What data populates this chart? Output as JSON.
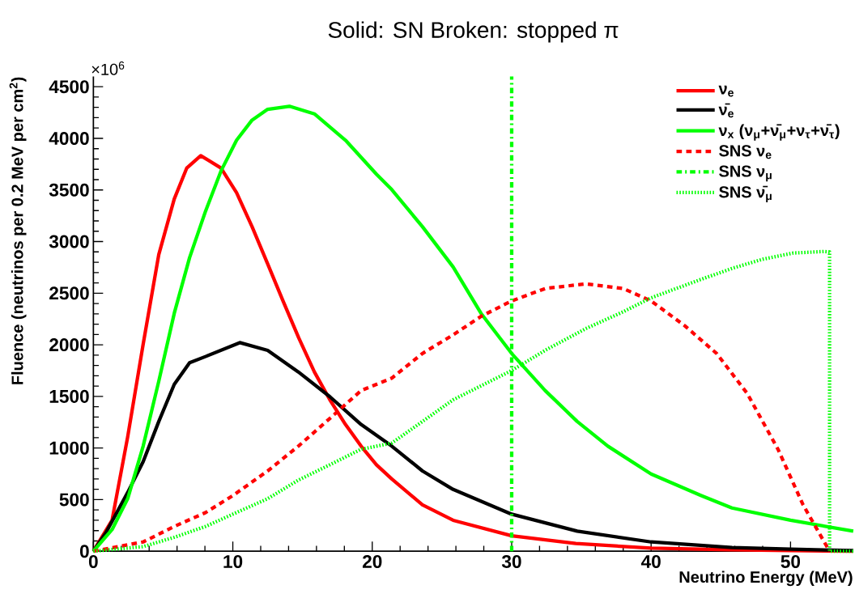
{
  "chart_data": {
    "type": "line",
    "title": "Solid: SN    Broken: stopped π",
    "xlabel": "Neutrino Energy (MeV)",
    "ylabel": "Fluence (neutrinos per 0.2 MeV per cm$^{2}$)",
    "annotations": [
      "×10$^{6}$"
    ],
    "xlim": [
      0,
      54.5
    ],
    "ylim": [
      0,
      4600
    ],
    "xticks": [
      0,
      10,
      20,
      30,
      40,
      50
    ],
    "yticks": [
      0,
      500,
      1000,
      1500,
      2000,
      2500,
      3000,
      3500,
      4000,
      4500
    ],
    "grid": false,
    "legend": "top right",
    "marker": "none",
    "series": [
      {
        "name": "ν$_{e}$",
        "color": "#ff0000",
        "line_style": "solid",
        "x": [
          0,
          1.34,
          2.46,
          3.57,
          4.69,
          5.8,
          6.7,
          7.7,
          9.15,
          10.27,
          11.38,
          12.5,
          13.6,
          14.73,
          15.85,
          16.96,
          18.08,
          19.2,
          20.3,
          21.4,
          23.6,
          25.8,
          30,
          34.6,
          40,
          45.7,
          50,
          54.5
        ],
        "values": [
          0,
          300,
          1108,
          2006,
          2874,
          3413,
          3713,
          3832,
          3713,
          3473,
          3144,
          2784,
          2425,
          2066,
          1737,
          1467,
          1228,
          1018,
          838,
          700,
          449,
          300,
          150,
          75,
          30,
          15,
          6,
          0
        ]
      },
      {
        "name": "ν̄$_{e}$",
        "color": "#000000",
        "line_style": "solid",
        "x": [
          0,
          0.9,
          2.46,
          3.57,
          4.69,
          5.8,
          6.9,
          8.04,
          10.5,
          12.5,
          14.7,
          16.96,
          19.2,
          21.4,
          23.6,
          25.8,
          30,
          34.7,
          40,
          45.8,
          50,
          54.5
        ],
        "values": [
          0,
          180,
          569,
          868,
          1257,
          1617,
          1826,
          1886,
          2021,
          1946,
          1737,
          1497,
          1228,
          1018,
          778,
          599,
          359,
          195,
          90,
          36,
          21,
          6
        ]
      },
      {
        "name": "ν$_{x}$ (ν$_{μ}$+ν̄$_{μ}$+ν$_{τ}$+ν̄$_{τ}$)",
        "color": "#00ff00",
        "line_style": "solid",
        "x": [
          0,
          1.34,
          2.46,
          3.57,
          4.69,
          5.8,
          6.9,
          8.04,
          9.15,
          10.27,
          11.38,
          12.5,
          14.06,
          15.85,
          18.08,
          20.3,
          21.4,
          23.6,
          25.8,
          27.8,
          30,
          32.4,
          34.7,
          36.9,
          40,
          43.6,
          45.8,
          50,
          54.5
        ],
        "values": [
          0,
          210,
          509,
          1018,
          1647,
          2305,
          2844,
          3293,
          3683,
          3982,
          4177,
          4281,
          4311,
          4237,
          3982,
          3653,
          3503,
          3144,
          2754,
          2305,
          1916,
          1557,
          1257,
          1018,
          748,
          539,
          419,
          300,
          195
        ]
      },
      {
        "name": "SNS ν$_{e}$",
        "color": "#ff0000",
        "line_style": "dashed",
        "x": [
          0,
          3.57,
          5.8,
          8.04,
          10,
          12.5,
          14.7,
          16.96,
          19.2,
          21.4,
          23.6,
          25.8,
          27.8,
          30,
          32.4,
          35.3,
          38,
          40,
          42.4,
          44.7,
          46.9,
          49.1,
          50.9,
          52.8
        ],
        "values": [
          0,
          90,
          240,
          374,
          539,
          778,
          1018,
          1287,
          1557,
          1677,
          1916,
          2096,
          2275,
          2425,
          2545,
          2590,
          2545,
          2425,
          2186,
          1916,
          1527,
          988,
          449,
          0
        ]
      },
      {
        "name": "SNS ν$_{μ}$",
        "color": "#00ff00",
        "line_style": "dashdot",
        "x": [
          30,
          30
        ],
        "values": [
          0,
          4600
        ]
      },
      {
        "name": "SNS ν̄$_{μ}$",
        "color": "#00ff00",
        "line_style": "dotted",
        "x": [
          0,
          3.57,
          5.8,
          8.04,
          10,
          12.5,
          14.7,
          16.96,
          19.2,
          21.4,
          23.6,
          25.8,
          30,
          32.4,
          35.3,
          38,
          40,
          43.6,
          45.8,
          48,
          50.2,
          52.4,
          52.8,
          52.8,
          54.5
        ],
        "values": [
          0,
          45,
          135,
          240,
          359,
          509,
          689,
          838,
          988,
          1048,
          1257,
          1467,
          1751,
          1946,
          2156,
          2320,
          2455,
          2635,
          2740,
          2829,
          2889,
          2904,
          2900,
          0,
          0
        ]
      }
    ]
  }
}
